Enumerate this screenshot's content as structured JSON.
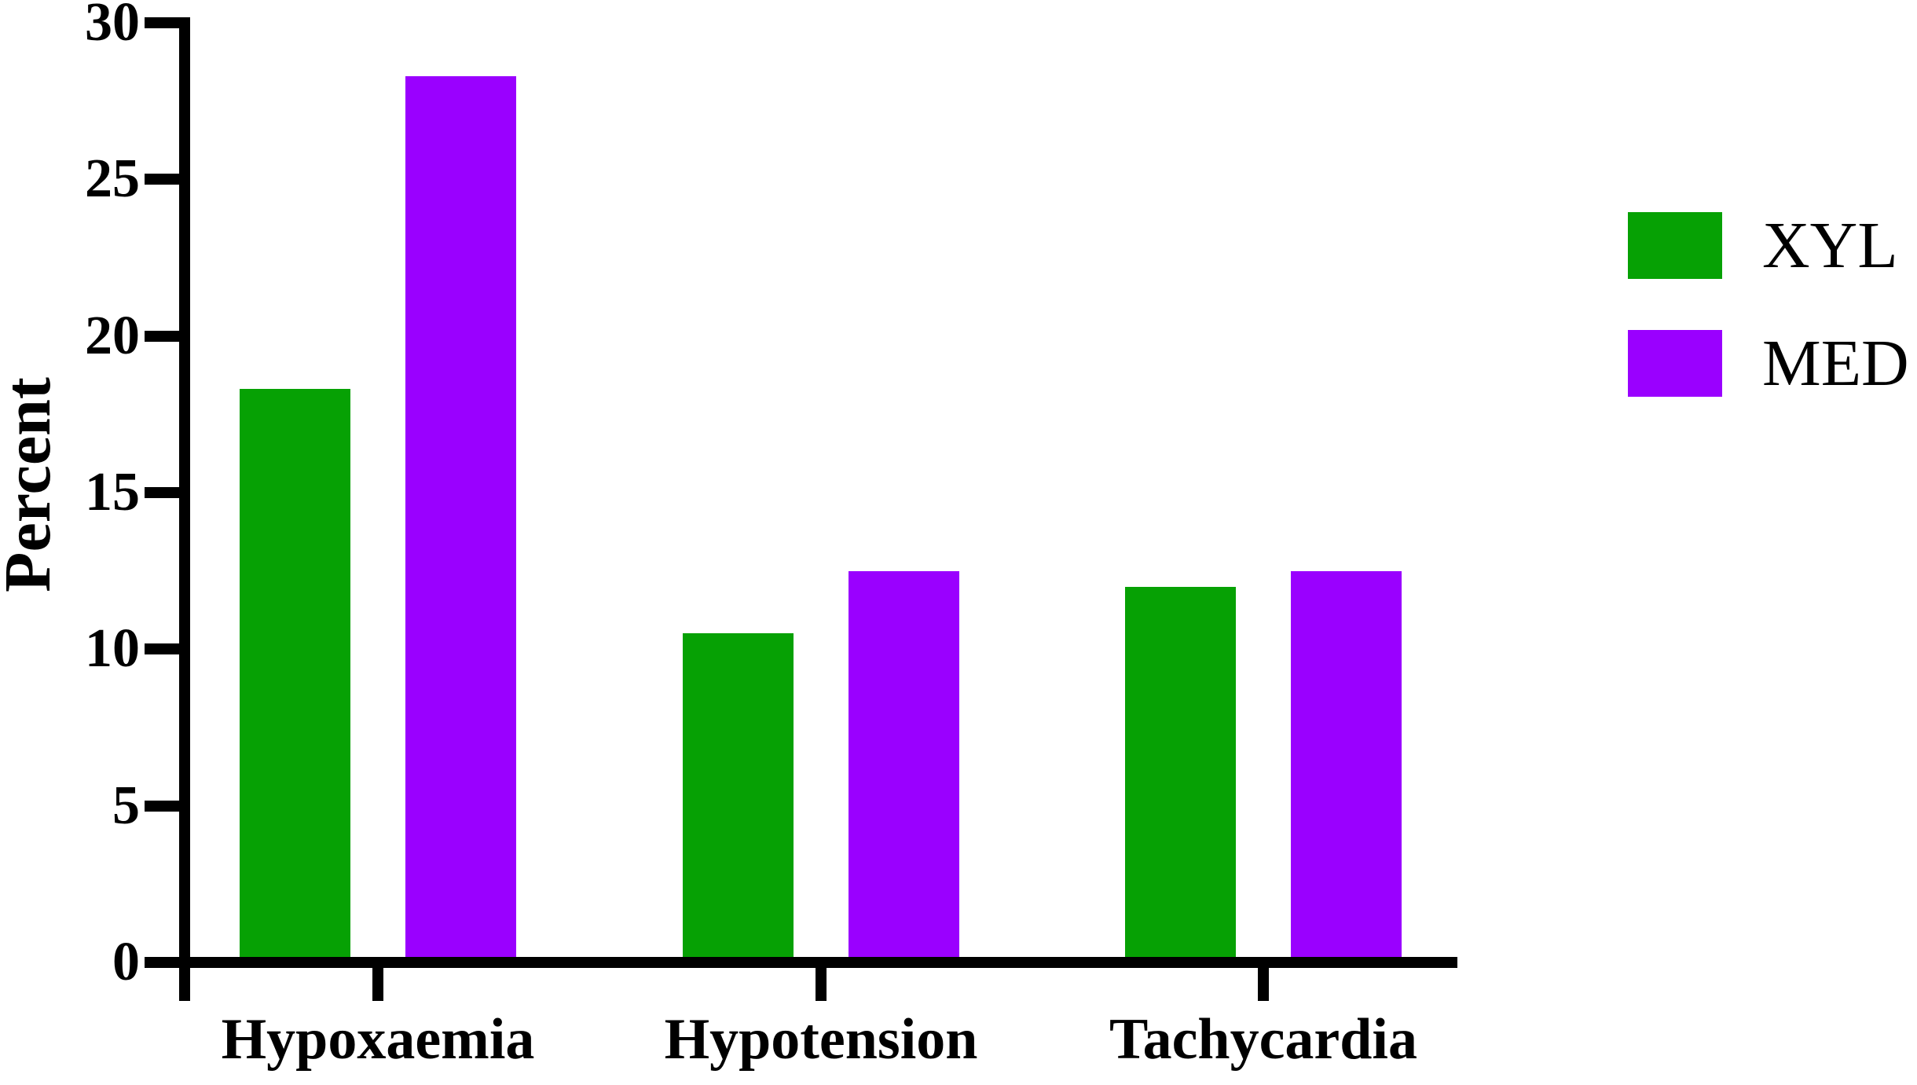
{
  "chart_data": {
    "type": "bar",
    "title": "",
    "xlabel": "",
    "ylabel": "Percent",
    "categories": [
      "Hypoxaemia",
      "Hypotension",
      "Tachycardia"
    ],
    "series": [
      {
        "name": "XYL",
        "color": "#06a104",
        "values": [
          18.3,
          10.5,
          12.0
        ]
      },
      {
        "name": "MED",
        "color": "#9a00ff",
        "values": [
          28.3,
          12.5,
          12.5
        ]
      }
    ],
    "ylim": [
      0,
      30
    ],
    "yticks": [
      0,
      5,
      10,
      15,
      20,
      25,
      30
    ],
    "grid": false,
    "legend_position": "right",
    "axis_color": "#000000",
    "background_color": "#ffffff"
  }
}
